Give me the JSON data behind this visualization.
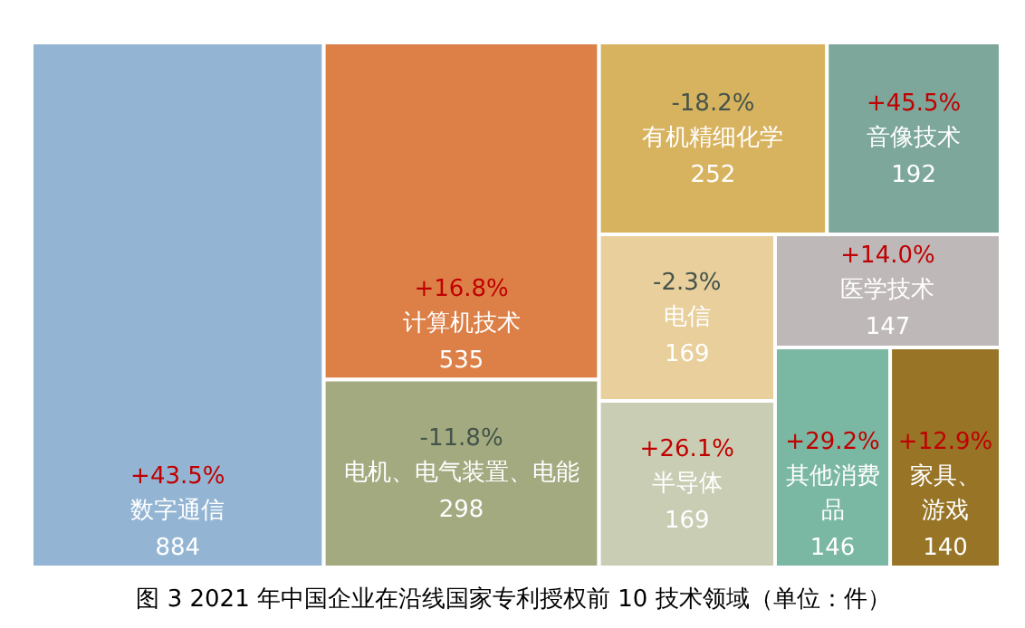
{
  "chart_data": {
    "type": "other",
    "title": "图 3 2021 年中国企业在沿线国家专利授权前 10 技术领域（单位：件）",
    "categories": [
      "数字通信",
      "计算机技术",
      "电机、电气装置、电能",
      "有机精细化学",
      "音像技术",
      "电信",
      "半导体",
      "医学技术",
      "其他消费品",
      "家具、游戏"
    ],
    "values": [
      884,
      535,
      298,
      252,
      192,
      169,
      169,
      147,
      146,
      140
    ],
    "colors": [
      "#93b5d3",
      "#dc8048",
      "#a3aa80",
      "#d8b35f",
      "#7ca79a",
      "#e8cf9c",
      "#c9cdb3",
      "#bfb8b9",
      "#7bb8a3",
      "#977426"
    ],
    "annotations": [
      "+43.5%",
      "+16.8%",
      "-11.8%",
      "-18.2%",
      "+45.5%",
      "-2.3%",
      "+26.1%",
      "+14.0%",
      "+29.2%",
      "+12.9%"
    ],
    "data_labels": true
  }
}
